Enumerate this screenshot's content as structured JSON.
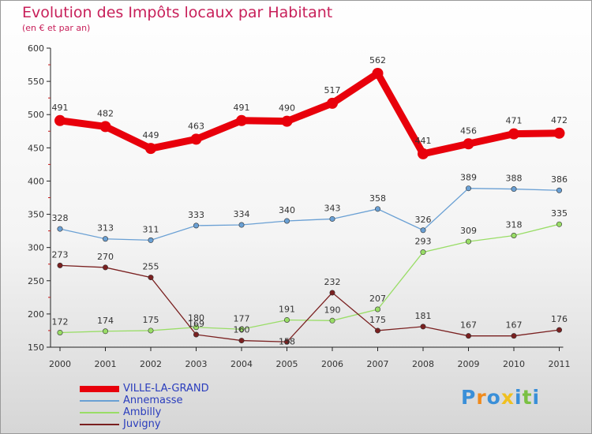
{
  "chart_data": {
    "type": "line",
    "title": "Evolution des Impôts locaux par Habitant",
    "subtitle": "(en € et par an)",
    "categories": [
      "2000",
      "2001",
      "2002",
      "2003",
      "2004",
      "2005",
      "2006",
      "2007",
      "2008",
      "2009",
      "2010",
      "2011"
    ],
    "ylim": [
      150,
      600
    ],
    "yticks": [
      150,
      200,
      250,
      300,
      350,
      400,
      450,
      500,
      550,
      600
    ],
    "grid": false,
    "legend_position": "bottom-left",
    "series": [
      {
        "name": "VILLE-LA-GRAND",
        "values": [
          491,
          482,
          449,
          463,
          491,
          490,
          517,
          562,
          441,
          456,
          471,
          472
        ],
        "color": "#e8000b",
        "emphasis": true
      },
      {
        "name": "Annemasse",
        "values": [
          328,
          313,
          311,
          333,
          334,
          340,
          343,
          358,
          326,
          389,
          388,
          386
        ],
        "color": "#6aa0d4"
      },
      {
        "name": "Ambilly",
        "values": [
          172,
          174,
          175,
          180,
          177,
          191,
          190,
          207,
          293,
          309,
          318,
          335
        ],
        "color": "#99dd66"
      },
      {
        "name": "Juvigny",
        "values": [
          273,
          270,
          255,
          169,
          160,
          158,
          232,
          175,
          181,
          167,
          167,
          176
        ],
        "color": "#7a2020"
      }
    ]
  },
  "logo": {
    "letters": [
      "P",
      "r",
      "o",
      "x",
      "i",
      "t",
      "i"
    ],
    "colors": [
      "#3a8fd8",
      "#f08a1c",
      "#3a8fd8",
      "#f0c020",
      "#3a8fd8",
      "#7ac043",
      "#3a8fd8"
    ]
  }
}
